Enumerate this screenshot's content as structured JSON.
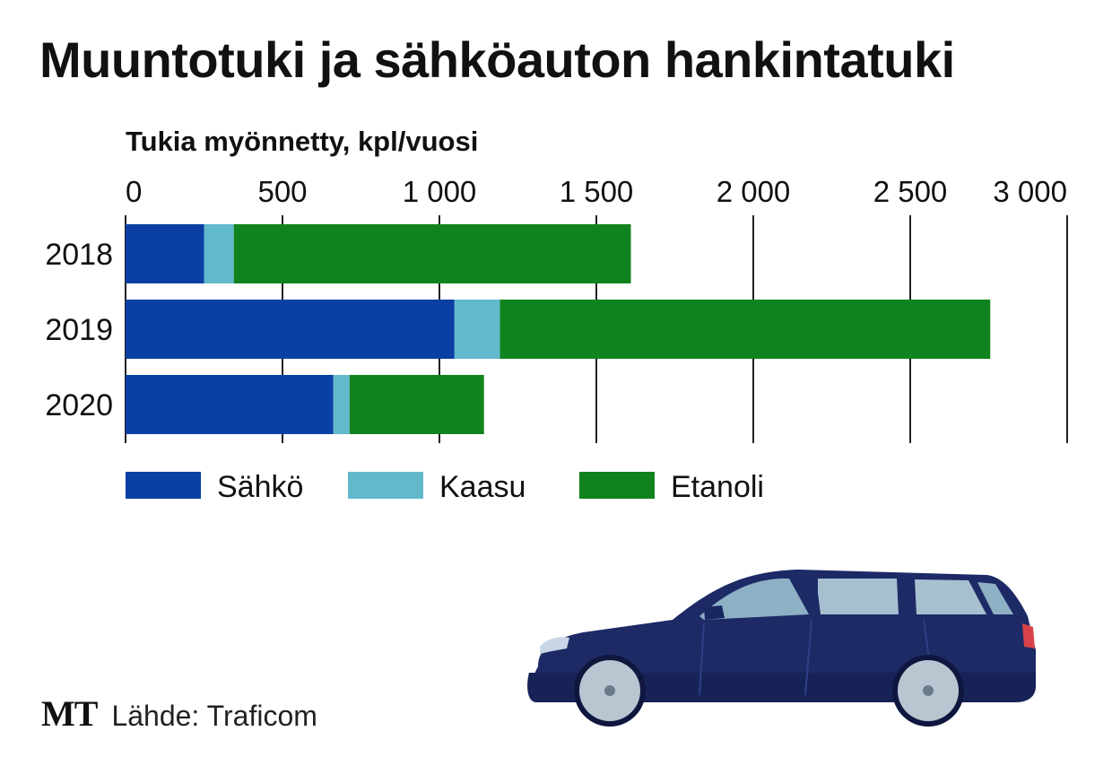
{
  "title": "Muuntotuki ja sähköauton hankintatuki",
  "brand": "MT",
  "source": "Lähde: Traficom",
  "chart_data": {
    "type": "bar",
    "orientation": "horizontal",
    "stacked": true,
    "title": "Muuntotuki ja sähköauton hankintatuki",
    "xlabel": "Tukia myönnetty, kpl/vuosi",
    "categories": [
      "2018",
      "2019",
      "2020"
    ],
    "series": [
      {
        "name": "Sähkö",
        "color": "#0a3fa3",
        "values": [
          250,
          1048,
          662
        ]
      },
      {
        "name": "Kaasu",
        "color": "#62b9cc",
        "values": [
          95,
          145,
          52
        ]
      },
      {
        "name": "Etanoli",
        "color": "#11831e",
        "values": [
          1265,
          1562,
          428
        ]
      }
    ],
    "xticks": [
      {
        "value": 0,
        "label": "0"
      },
      {
        "value": 500,
        "label": "500"
      },
      {
        "value": 1000,
        "label": "1 000"
      },
      {
        "value": 1500,
        "label": "1 500"
      },
      {
        "value": 2000,
        "label": "2 000"
      },
      {
        "value": 2500,
        "label": "2 500"
      },
      {
        "value": 3000,
        "label": "3 000"
      }
    ],
    "xlim": [
      0,
      3000
    ],
    "grid": true,
    "legend": "bottom"
  }
}
